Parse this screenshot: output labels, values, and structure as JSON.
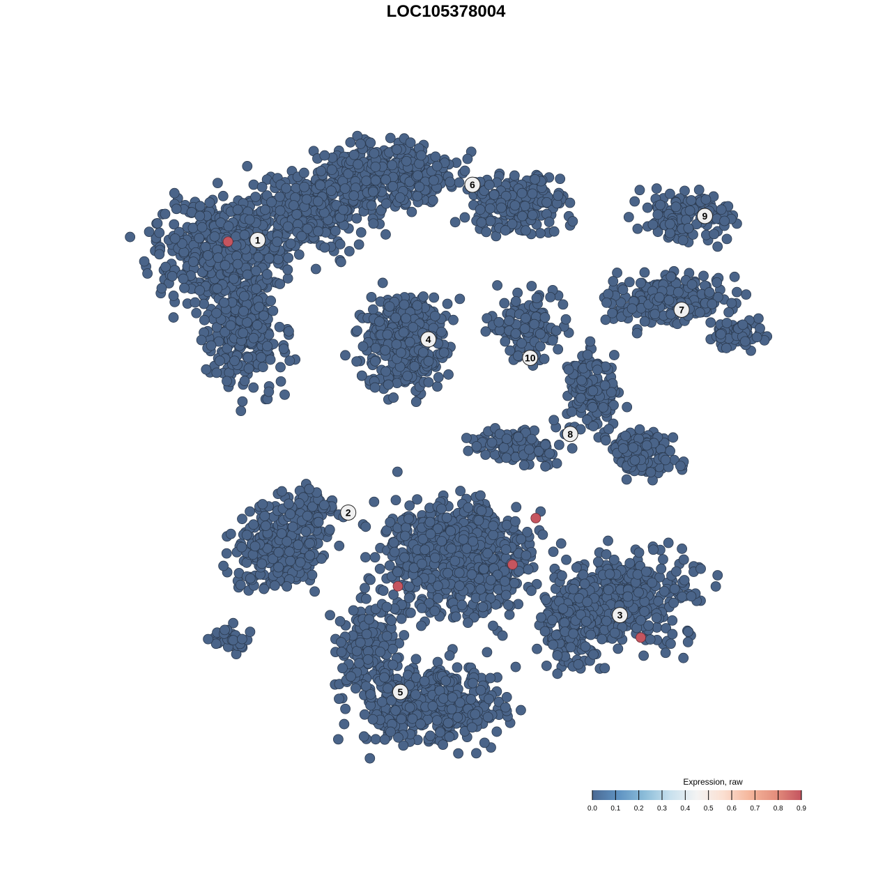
{
  "chart_data": {
    "type": "scatter",
    "title": "LOC105378004",
    "xlabel": "",
    "ylabel": "",
    "grid": false,
    "axes_visible": false,
    "point_color_base": "#4a6489",
    "point_color_high": "#c5555f",
    "clusters": [
      {
        "label": "1",
        "label_pos": [
          -23.5,
          25.7
        ],
        "blobs": [
          {
            "center": [
              -27.8,
              24.3
            ],
            "spread": [
              7.8,
              6.1
            ],
            "n": 500
          },
          {
            "center": [
              -25.2,
              13.9
            ],
            "spread": [
              4.3,
              6.1
            ],
            "n": 250
          },
          {
            "center": [
              -16.5,
              29.6
            ],
            "spread": [
              7.0,
              4.3
            ],
            "n": 300
          }
        ]
      },
      {
        "label": "2",
        "label_pos": [
          -12.2,
          -8.3
        ],
        "blobs": [
          {
            "center": [
              -20.9,
              -13.0
            ],
            "spread": [
              5.2,
              4.3
            ],
            "n": 280
          },
          {
            "center": [
              -17.4,
              -7.8
            ],
            "spread": [
              4.3,
              2.2
            ],
            "n": 80
          },
          {
            "center": [
              -27.0,
              -24.3
            ],
            "spread": [
              2.6,
              1.7
            ],
            "n": 30
          }
        ]
      },
      {
        "label": "3",
        "label_pos": [
          21.7,
          -21.1
        ],
        "blobs": [
          {
            "center": [
              22.6,
              -19.1
            ],
            "spread": [
              7.8,
              5.2
            ],
            "n": 350
          },
          {
            "center": [
              15.7,
              -22.6
            ],
            "spread": [
              3.5,
              5.2
            ],
            "n": 150
          }
        ]
      },
      {
        "label": "4",
        "label_pos": [
          -2.2,
          13.3
        ],
        "blobs": [
          {
            "center": [
              -5.2,
              13.0
            ],
            "spread": [
              4.8,
              5.2
            ],
            "n": 400
          }
        ]
      },
      {
        "label": "5",
        "label_pos": [
          -5.7,
          -30.7
        ],
        "blobs": [
          {
            "center": [
              -1.7,
              -32.2
            ],
            "spread": [
              8.7,
              4.3
            ],
            "n": 450
          },
          {
            "center": [
              -9.6,
              -25.2
            ],
            "spread": [
              3.5,
              5.2
            ],
            "n": 150
          },
          {
            "center": [
              1.7,
              -13.9
            ],
            "spread": [
              8.7,
              7.0
            ],
            "n": 700
          }
        ]
      },
      {
        "label": "6",
        "label_pos": [
          3.3,
          32.6
        ],
        "blobs": [
          {
            "center": [
              -7.0,
              33.9
            ],
            "spread": [
              7.8,
              3.5
            ],
            "n": 400
          },
          {
            "center": [
              8.7,
              30.4
            ],
            "spread": [
              6.1,
              3.5
            ],
            "n": 200
          }
        ]
      },
      {
        "label": "7",
        "label_pos": [
          29.4,
          17.0
        ],
        "blobs": [
          {
            "center": [
              27.8,
              18.3
            ],
            "spread": [
              7.0,
              3.0
            ],
            "n": 220
          },
          {
            "center": [
              36.5,
              13.9
            ],
            "spread": [
              3.5,
              1.7
            ],
            "n": 60
          }
        ]
      },
      {
        "label": "8",
        "label_pos": [
          15.5,
          1.5
        ],
        "blobs": [
          {
            "center": [
              18.3,
              7.0
            ],
            "spread": [
              3.0,
              4.3
            ],
            "n": 150
          },
          {
            "center": [
              24.3,
              -0.9
            ],
            "spread": [
              3.9,
              2.6
            ],
            "n": 150
          },
          {
            "center": [
              8.7,
              0.0
            ],
            "spread": [
              5.2,
              2.2
            ],
            "n": 100
          }
        ]
      },
      {
        "label": "9",
        "label_pos": [
          32.3,
          28.7
        ],
        "blobs": [
          {
            "center": [
              30.4,
              28.7
            ],
            "spread": [
              5.2,
              3.0
            ],
            "n": 150
          }
        ]
      },
      {
        "label": "10",
        "label_pos": [
          10.5,
          11.0
        ],
        "blobs": [
          {
            "center": [
              9.6,
              14.8
            ],
            "spread": [
              4.3,
              4.3
            ],
            "n": 120
          }
        ]
      }
    ],
    "expressing_points": [
      {
        "x": -27.2,
        "y": 25.5,
        "value": 0.9
      },
      {
        "x": 11.2,
        "y": -9.0,
        "value": 0.9
      },
      {
        "x": 8.3,
        "y": -14.8,
        "value": 0.9
      },
      {
        "x": -6.0,
        "y": -17.5,
        "value": 0.9
      },
      {
        "x": 24.3,
        "y": -23.9,
        "value": 0.9
      }
    ],
    "legend": {
      "title": "Expression, raw",
      "placement": "bottom-right",
      "range": [
        0,
        0.9
      ],
      "ticks": [
        "0.0",
        "0.1",
        "0.2",
        "0.3",
        "0.4",
        "0.5",
        "0.6",
        "0.7",
        "0.8",
        "0.9"
      ],
      "colors": [
        "#4b6a94",
        "#5f93c2",
        "#8cbdd9",
        "#c9e1ee",
        "#f3f3f3",
        "#fbe0d2",
        "#f5b79d",
        "#e48f7d",
        "#c4545f"
      ]
    }
  }
}
